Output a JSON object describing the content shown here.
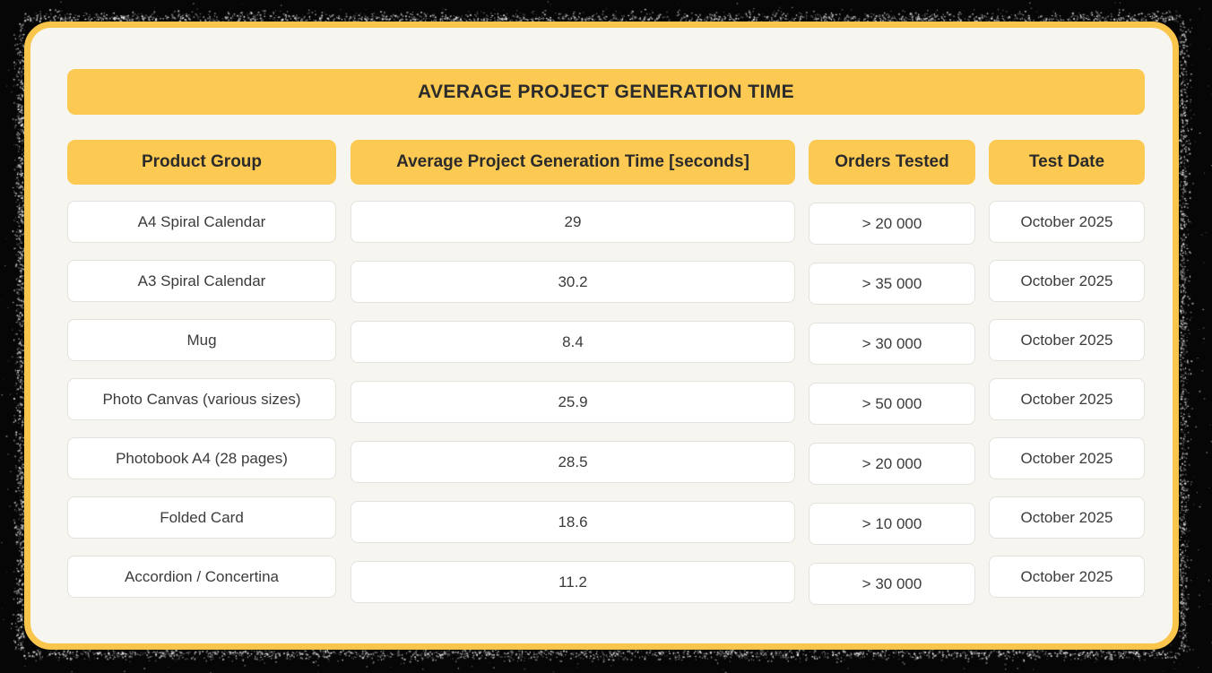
{
  "title": "AVERAGE PROJECT GENERATION TIME",
  "chart_data": {
    "type": "table",
    "title": "AVERAGE PROJECT GENERATION TIME",
    "columns": [
      "Product Group",
      "Average Project Generation Time [seconds]",
      "Orders Tested",
      "Test Date"
    ],
    "rows": [
      [
        "A4 Spiral Calendar",
        "29",
        "> 20 000",
        "October 2025"
      ],
      [
        "A3 Spiral Calendar",
        "30.2",
        "> 35 000",
        "October 2025"
      ],
      [
        "Mug",
        "8.4",
        "> 30 000",
        "October 2025"
      ],
      [
        "Photo Canvas (various sizes)",
        "25.9",
        "> 50 000",
        "October 2025"
      ],
      [
        "Photobook A4 (28 pages)",
        "28.5",
        "> 20 000",
        "October 2025"
      ],
      [
        "Folded Card",
        "18.6",
        "> 10 000",
        "October 2025"
      ],
      [
        "Accordion / Concertina",
        "11.2",
        "> 30 000",
        "October 2025"
      ]
    ],
    "series": [
      {
        "name": "Average Project Generation Time [seconds]",
        "values": [
          29,
          30.2,
          8.4,
          25.9,
          28.5,
          18.6,
          11.2
        ]
      }
    ]
  },
  "colors": {
    "accent_yellow": "#FCCA52",
    "card_border_yellow": "#F9C54B",
    "card_background": "#F7F5EF",
    "cell_background": "#FFFFFF",
    "cell_border": "#E4E2DC",
    "heading_text": "#2B2B2B",
    "cell_text": "#3B3B3B",
    "outer_background": "#060606",
    "speckle": "#FFFFFF"
  }
}
